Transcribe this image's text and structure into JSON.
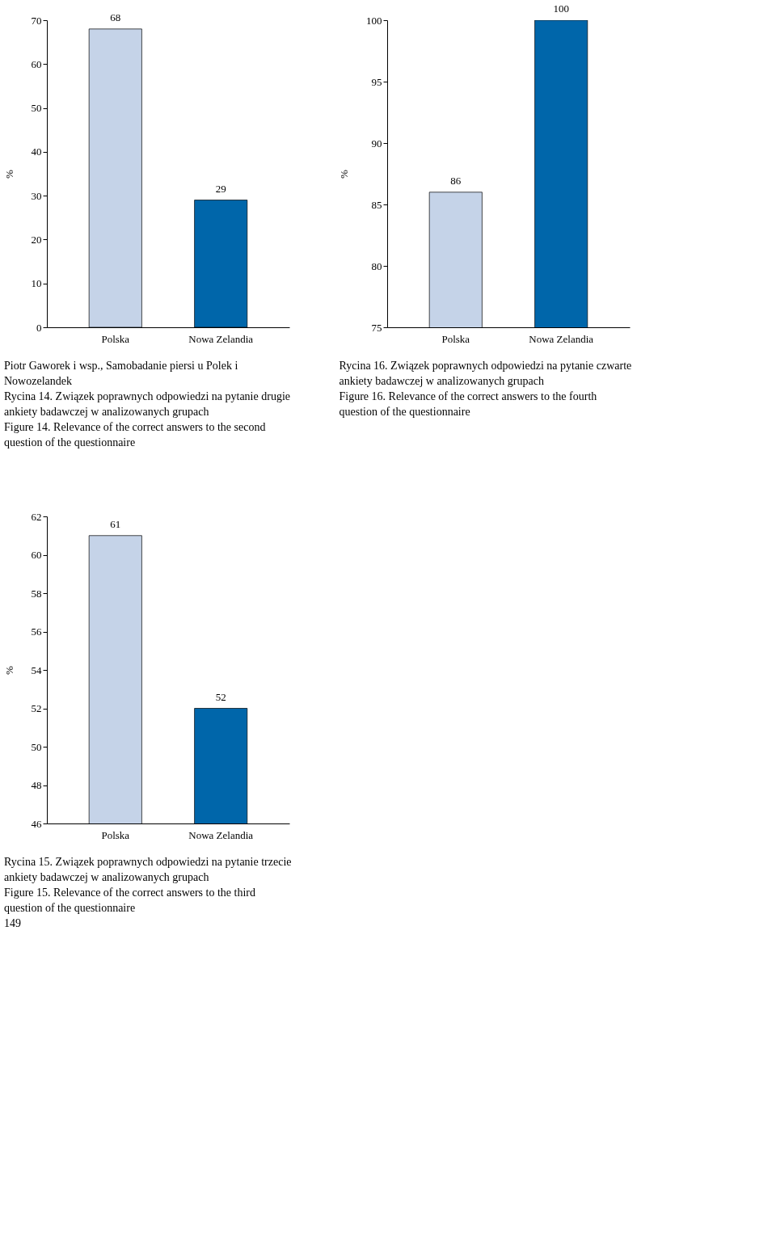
{
  "chart_data": [
    {
      "type": "bar",
      "categories": [
        "Polska",
        "Nowa Zelandia"
      ],
      "values": [
        68,
        29
      ],
      "colors": [
        "#c5d3e8",
        "#0066aa"
      ],
      "ylabel": "%",
      "ylim": [
        0,
        70
      ],
      "yticks": [
        0,
        10,
        20,
        30,
        40,
        50,
        60,
        70
      ],
      "data_labels": true,
      "grid": false,
      "annotations": [
        "Piotr Gaworek i wsp., Samobadanie piersi u Polek i Nowozelandek",
        "Rycina 14. Związek poprawnych odpowiedzi na pytanie drugie ankiety badawczej w analizowanych grupach",
        "Figure 14. Relevance of the correct answers to the second question of the questionnaire"
      ]
    },
    {
      "type": "bar",
      "categories": [
        "Polska",
        "Nowa Zelandia"
      ],
      "values": [
        86,
        100
      ],
      "colors": [
        "#c5d3e8",
        "#0066aa"
      ],
      "ylabel": "%",
      "ylim": [
        75,
        100
      ],
      "yticks": [
        75,
        80,
        85,
        90,
        95,
        100
      ],
      "data_labels": true,
      "grid": false,
      "annotations": [
        "Rycina 16. Związek poprawnych odpowiedzi na pytanie czwarte ankiety badawczej w analizowanych grupach",
        "Figure 16. Relevance of the correct answers to the fourth question of the questionnaire"
      ]
    },
    {
      "type": "bar",
      "categories": [
        "Polska",
        "Nowa Zelandia"
      ],
      "values": [
        61,
        52
      ],
      "colors": [
        "#c5d3e8",
        "#0066aa"
      ],
      "ylabel": "%",
      "ylim": [
        46,
        62
      ],
      "yticks": [
        46,
        48,
        50,
        52,
        54,
        56,
        58,
        60,
        62
      ],
      "data_labels": true,
      "grid": false,
      "annotations": [
        "Rycina 15. Związek poprawnych odpowiedzi na pytanie trzecie ankiety badawczej w analizowanych grupach",
        "Figure 15. Relevance of the correct answers to the third question of the questionnaire",
        "149"
      ]
    }
  ]
}
